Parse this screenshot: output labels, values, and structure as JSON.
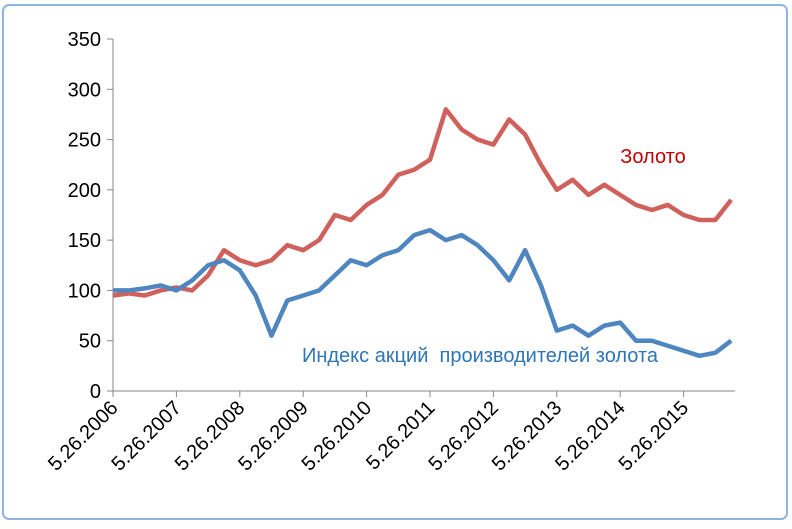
{
  "chart_data": {
    "type": "line",
    "categories": [
      "5.26.2006",
      null,
      null,
      null,
      "5.26.2007",
      null,
      null,
      null,
      "5.26.2008",
      null,
      null,
      null,
      "5.26.2009",
      null,
      null,
      null,
      "5.26.2010",
      null,
      null,
      null,
      "5.26.2011",
      null,
      null,
      null,
      "5.26.2012",
      null,
      null,
      null,
      "5.26.2013",
      null,
      null,
      null,
      "5.26.2014",
      null,
      null,
      null,
      "5.26.2015",
      null,
      null,
      null
    ],
    "series": [
      {
        "name": "Золото",
        "color": "#d0605c",
        "values": [
          95,
          97,
          95,
          100,
          103,
          100,
          115,
          140,
          130,
          125,
          130,
          145,
          140,
          150,
          175,
          170,
          185,
          195,
          215,
          220,
          230,
          280,
          260,
          250,
          245,
          270,
          255,
          225,
          200,
          210,
          195,
          205,
          195,
          185,
          180,
          185,
          175,
          170,
          170,
          190
        ]
      },
      {
        "name": "Индекс акций  производителей золота",
        "color": "#4f86c0",
        "values": [
          100,
          100,
          102,
          105,
          100,
          110,
          125,
          130,
          120,
          95,
          55,
          90,
          95,
          100,
          115,
          130,
          125,
          135,
          140,
          155,
          160,
          150,
          155,
          145,
          130,
          110,
          140,
          105,
          60,
          65,
          55,
          65,
          68,
          50,
          50,
          45,
          40,
          35,
          38,
          50
        ]
      }
    ],
    "ylim": [
      0,
      350
    ],
    "yticks": [
      0,
      50,
      100,
      150,
      200,
      250,
      300,
      350
    ]
  }
}
